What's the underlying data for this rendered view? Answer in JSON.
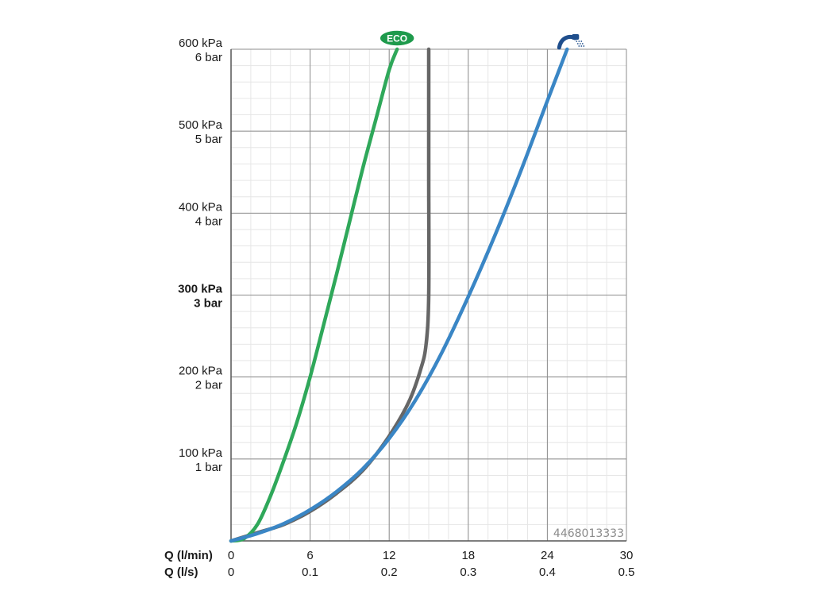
{
  "chart_data": {
    "type": "line",
    "x_axes": [
      {
        "label": "Q (l/min)",
        "ticks": [
          "0",
          "6",
          "12",
          "18",
          "24",
          "30"
        ],
        "range": [
          0,
          30
        ]
      },
      {
        "label": "Q (l/s)",
        "ticks": [
          "0",
          "0.1",
          "0.2",
          "0.3",
          "0.4",
          "0.5"
        ],
        "range": [
          0,
          0.5
        ]
      }
    ],
    "y_ticks": [
      {
        "kpa": "600 kPa",
        "bar": "6 bar",
        "value": 600,
        "bold": false
      },
      {
        "kpa": "500 kPa",
        "bar": "5 bar",
        "value": 500,
        "bold": false
      },
      {
        "kpa": "400 kPa",
        "bar": "4 bar",
        "value": 400,
        "bold": false
      },
      {
        "kpa": "300 kPa",
        "bar": "3 bar",
        "value": 300,
        "bold": true
      },
      {
        "kpa": "200 kPa",
        "bar": "2 bar",
        "value": 200,
        "bold": false
      },
      {
        "kpa": "100 kPa",
        "bar": "1 bar",
        "value": 100,
        "bold": false
      }
    ],
    "ylim": [
      0,
      600
    ],
    "xlim": [
      0,
      30
    ],
    "grid": true,
    "series": [
      {
        "name": "ECO",
        "color": "#2fa85a",
        "marker": "eco-badge",
        "x": [
          0,
          1,
          2,
          3,
          4,
          5,
          6,
          7,
          8,
          9,
          10,
          11,
          12,
          12.6
        ],
        "y": [
          0,
          3,
          20,
          55,
          98,
          145,
          200,
          262,
          325,
          390,
          455,
          515,
          575,
          600
        ]
      },
      {
        "name": "",
        "color": "#666666",
        "marker": "",
        "x": [
          0,
          2,
          4,
          6,
          8,
          10,
          12,
          13.5,
          14.4,
          14.8,
          15,
          15,
          15
        ],
        "y": [
          0,
          10,
          20,
          36,
          58,
          86,
          128,
          170,
          210,
          240,
          300,
          450,
          600
        ]
      },
      {
        "name": "",
        "color": "#3a86c5",
        "marker": "shower-icon",
        "x": [
          0,
          2,
          4,
          6,
          8,
          10,
          12,
          14,
          16,
          18,
          20,
          22,
          24,
          25.5
        ],
        "y": [
          0,
          9,
          21,
          38,
          60,
          88,
          125,
          172,
          230,
          298,
          372,
          452,
          537,
          600
        ]
      }
    ],
    "annotation": "4468013333",
    "colors": {
      "grid_minor": "#e6e6e6",
      "grid_major": "#8c8c8c",
      "eco_badge": "#1e9a4c",
      "shower_icon": "#1f4e8c"
    }
  }
}
